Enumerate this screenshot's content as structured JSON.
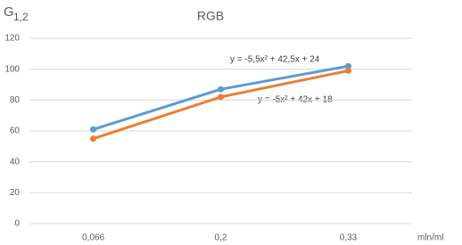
{
  "chart_data": {
    "type": "line",
    "title": "RGB",
    "y_label": "G",
    "y_label_sub": "1,2",
    "x_label": "mln/ml",
    "categories": [
      "0,066",
      "0,2",
      "0,33"
    ],
    "series": [
      {
        "color": "#5b9bd5",
        "values": [
          61,
          87,
          102
        ]
      },
      {
        "color": "#ed7d31",
        "values": [
          55,
          82,
          99
        ]
      }
    ],
    "annotations": [
      "y = -5,5x² + 42,5x + 24",
      "y = -5x² + 42x + 18"
    ],
    "ylim": [
      0,
      120
    ],
    "yticks": [
      0,
      20,
      40,
      60,
      80,
      100,
      120
    ],
    "grid": true
  }
}
